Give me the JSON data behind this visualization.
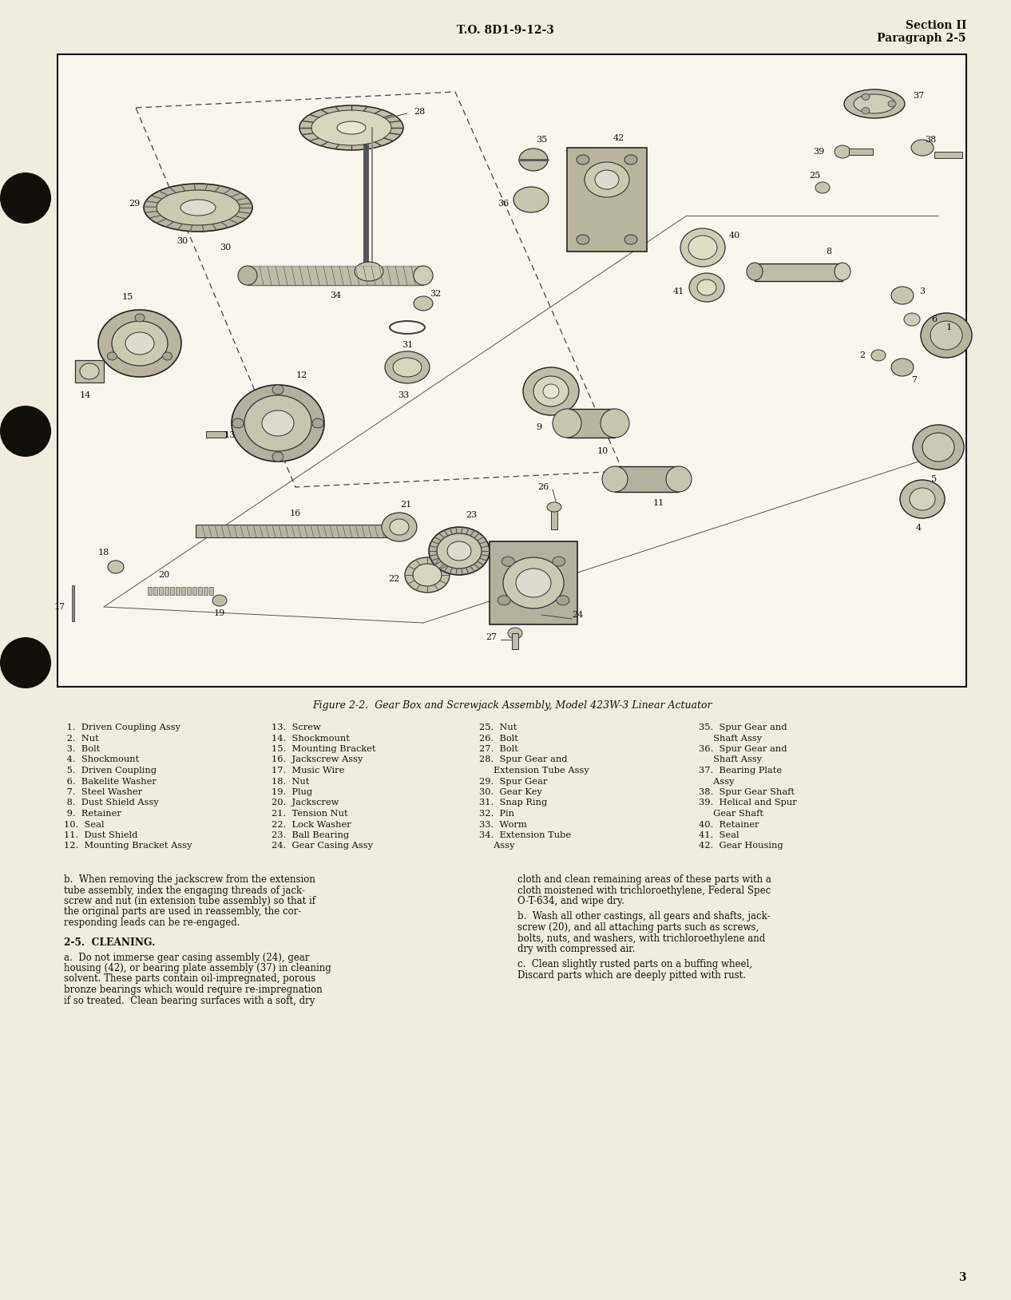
{
  "page_bg_color": "#f0ece0",
  "fig_bg_color": "#f8f5ec",
  "border_color": "#1a1a1a",
  "text_color": "#1a1008",
  "header_center": "T.O. 8D1-9-12-3",
  "header_right_line1": "Section II",
  "header_right_line2": "Paragraph 2-5",
  "figure_caption": "Figure 2-2.  Gear Box and Screwjack Assembly, Model 423W-3 Linear Actuator",
  "page_number": "3",
  "col1_items": [
    " 1.  Driven Coupling Assy",
    " 2.  Nut",
    " 3.  Bolt",
    " 4.  Shockmount",
    " 5.  Driven Coupling",
    " 6.  Bakelite Washer",
    " 7.  Steel Washer",
    " 8.  Dust Shield Assy",
    " 9.  Retainer",
    "10.  Seal",
    "11.  Dust Shield",
    "12.  Mounting Bracket Assy"
  ],
  "col2_items": [
    "13.  Screw",
    "14.  Shockmount",
    "15.  Mounting Bracket",
    "16.  Jackscrew Assy",
    "17.  Music Wire",
    "18.  Nut",
    "19.  Plug",
    "20.  Jackscrew",
    "21.  Tension Nut",
    "22.  Lock Washer",
    "23.  Ball Bearing",
    "24.  Gear Casing Assy"
  ],
  "col3_items": [
    "25.  Nut",
    "26.  Bolt",
    "27.  Bolt",
    "28.  Spur Gear and",
    "     Extension Tube Assy",
    "29.  Spur Gear",
    "30.  Gear Key",
    "31.  Snap Ring",
    "32.  Pin",
    "33.  Worm",
    "34.  Extension Tube",
    "     Assy"
  ],
  "col4_items": [
    "35.  Spur Gear and",
    "     Shaft Assy",
    "36.  Spur Gear and",
    "     Shaft Assy",
    "37.  Bearing Plate",
    "     Assy",
    "38.  Spur Gear Shaft",
    "39.  Helical and Spur",
    "     Gear Shaft",
    "40.  Retainer",
    "41.  Seal",
    "42.  Gear Housing"
  ],
  "para_b": "b.  When removing the jackscrew from the extension tube assembly, index the engaging threads of jack-screw and nut (in extension tube assembly) so that if the original parts are used in reassembly, the cor-responding leads can be re-engaged.",
  "heading_25": "2-5.  CLEANING.",
  "para_a": "a.  Do not immerse gear casing assembly (24), gear housing (42), or bearing plate assembly (37) in cleaning solvent. These parts contain oil-impregnated, porous bronze bearings which would require re-impregnation if so treated.  Clean bearing surfaces with a soft, dry",
  "right_para1": "cloth and clean remaining areas of these parts with a cloth moistened with trichloroethylene, Federal Spec O-T-634, and wipe dry.",
  "right_para_b": "b.  Wash all other castings, all gears and shafts, jack-screw (20), and all attaching parts such as screws, bolts, nuts, and washers, with trichloroethylene and dry with compressed air.",
  "right_para_c": "c.  Clean slightly rusted parts on a buffing wheel, Discard parts which are deeply pitted with rust."
}
